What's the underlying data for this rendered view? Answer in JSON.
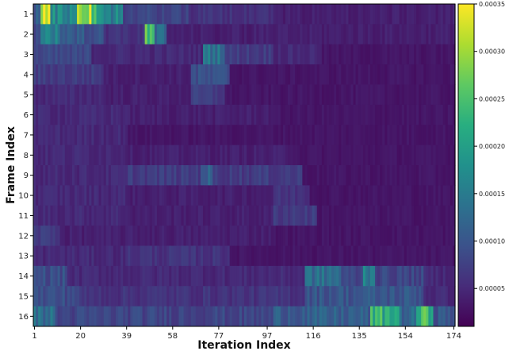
{
  "chart_data": {
    "type": "heatmap",
    "title": "",
    "xlabel": "Iteration Index",
    "ylabel": "Frame Index",
    "x_range": [
      1,
      174
    ],
    "x_ticks": [
      1,
      20,
      39,
      58,
      77,
      97,
      116,
      135,
      154,
      174
    ],
    "y_categories": [
      "1",
      "2",
      "3",
      "4",
      "5",
      "6",
      "7",
      "8",
      "9",
      "10",
      "11",
      "12",
      "13",
      "14",
      "15",
      "16"
    ],
    "colormap": "viridis",
    "colorbar": {
      "vmin": 1e-05,
      "vmax": 0.00035,
      "ticks": [
        5e-05,
        0.0001,
        0.00015,
        0.0002,
        0.00025,
        0.0003,
        0.00035
      ],
      "tick_labels": [
        "0.00005",
        "0.00010",
        "0.00015",
        "0.00020",
        "0.00025",
        "0.00030",
        "0.00035"
      ]
    },
    "grid": false,
    "row_profiles": [
      {
        "frame": "1",
        "segments": [
          {
            "from": 1,
            "to": 4,
            "value": 0.00011
          },
          {
            "from": 4,
            "to": 8,
            "value": 0.00033
          },
          {
            "from": 8,
            "to": 19,
            "value": 0.00017
          },
          {
            "from": 19,
            "to": 25,
            "value": 0.00031
          },
          {
            "from": 25,
            "to": 30,
            "value": 0.00022
          },
          {
            "from": 30,
            "to": 38,
            "value": 0.00016
          },
          {
            "from": 38,
            "to": 65,
            "value": 8e-05
          },
          {
            "from": 65,
            "to": 100,
            "value": 6e-05
          },
          {
            "from": 100,
            "to": 174,
            "value": 4e-05
          }
        ]
      },
      {
        "frame": "2",
        "segments": [
          {
            "from": 1,
            "to": 4,
            "value": 8e-05
          },
          {
            "from": 4,
            "to": 12,
            "value": 0.00016
          },
          {
            "from": 12,
            "to": 30,
            "value": 0.0001
          },
          {
            "from": 30,
            "to": 47,
            "value": 6e-05
          },
          {
            "from": 47,
            "to": 51,
            "value": 0.00024
          },
          {
            "from": 51,
            "to": 56,
            "value": 0.00012
          },
          {
            "from": 56,
            "to": 174,
            "value": 4e-05
          }
        ]
      },
      {
        "frame": "3",
        "segments": [
          {
            "from": 1,
            "to": 25,
            "value": 8e-05
          },
          {
            "from": 25,
            "to": 71,
            "value": 5e-05
          },
          {
            "from": 71,
            "to": 80,
            "value": 0.00014
          },
          {
            "from": 80,
            "to": 100,
            "value": 7e-05
          },
          {
            "from": 100,
            "to": 120,
            "value": 5e-05
          },
          {
            "from": 120,
            "to": 174,
            "value": 3e-05
          }
        ]
      },
      {
        "frame": "4",
        "segments": [
          {
            "from": 1,
            "to": 30,
            "value": 7e-05
          },
          {
            "from": 30,
            "to": 66,
            "value": 4e-05
          },
          {
            "from": 66,
            "to": 82,
            "value": 9e-05
          },
          {
            "from": 82,
            "to": 174,
            "value": 3e-05
          }
        ]
      },
      {
        "frame": "5",
        "segments": [
          {
            "from": 1,
            "to": 30,
            "value": 5e-05
          },
          {
            "from": 30,
            "to": 66,
            "value": 4e-05
          },
          {
            "from": 66,
            "to": 80,
            "value": 7e-05
          },
          {
            "from": 80,
            "to": 174,
            "value": 3e-05
          }
        ]
      },
      {
        "frame": "6",
        "segments": [
          {
            "from": 1,
            "to": 40,
            "value": 5e-05
          },
          {
            "from": 40,
            "to": 100,
            "value": 4e-05
          },
          {
            "from": 100,
            "to": 174,
            "value": 3e-05
          }
        ]
      },
      {
        "frame": "7",
        "segments": [
          {
            "from": 1,
            "to": 40,
            "value": 5e-05
          },
          {
            "from": 40,
            "to": 174,
            "value": 3e-05
          }
        ]
      },
      {
        "frame": "8",
        "segments": [
          {
            "from": 1,
            "to": 40,
            "value": 5e-05
          },
          {
            "from": 40,
            "to": 110,
            "value": 4e-05
          },
          {
            "from": 110,
            "to": 174,
            "value": 3e-05
          }
        ]
      },
      {
        "frame": "9",
        "segments": [
          {
            "from": 1,
            "to": 40,
            "value": 5e-05
          },
          {
            "from": 40,
            "to": 70,
            "value": 7e-05
          },
          {
            "from": 70,
            "to": 75,
            "value": 0.00011
          },
          {
            "from": 75,
            "to": 112,
            "value": 7e-05
          },
          {
            "from": 112,
            "to": 174,
            "value": 3e-05
          }
        ]
      },
      {
        "frame": "10",
        "segments": [
          {
            "from": 1,
            "to": 40,
            "value": 5e-05
          },
          {
            "from": 40,
            "to": 100,
            "value": 4e-05
          },
          {
            "from": 100,
            "to": 115,
            "value": 6e-05
          },
          {
            "from": 115,
            "to": 174,
            "value": 3e-05
          }
        ]
      },
      {
        "frame": "11",
        "segments": [
          {
            "from": 1,
            "to": 40,
            "value": 5e-05
          },
          {
            "from": 40,
            "to": 100,
            "value": 4e-05
          },
          {
            "from": 100,
            "to": 118,
            "value": 7e-05
          },
          {
            "from": 118,
            "to": 174,
            "value": 3e-05
          }
        ]
      },
      {
        "frame": "12",
        "segments": [
          {
            "from": 1,
            "to": 12,
            "value": 7e-05
          },
          {
            "from": 12,
            "to": 100,
            "value": 4e-05
          },
          {
            "from": 100,
            "to": 174,
            "value": 3e-05
          }
        ]
      },
      {
        "frame": "13",
        "segments": [
          {
            "from": 1,
            "to": 40,
            "value": 5e-05
          },
          {
            "from": 40,
            "to": 82,
            "value": 6e-05
          },
          {
            "from": 82,
            "to": 174,
            "value": 3e-05
          }
        ]
      },
      {
        "frame": "14",
        "segments": [
          {
            "from": 1,
            "to": 15,
            "value": 9e-05
          },
          {
            "from": 15,
            "to": 113,
            "value": 5e-05
          },
          {
            "from": 113,
            "to": 128,
            "value": 0.00013
          },
          {
            "from": 128,
            "to": 137,
            "value": 8e-05
          },
          {
            "from": 137,
            "to": 142,
            "value": 0.00016
          },
          {
            "from": 142,
            "to": 162,
            "value": 8e-05
          },
          {
            "from": 162,
            "to": 174,
            "value": 5e-05
          }
        ]
      },
      {
        "frame": "15",
        "segments": [
          {
            "from": 1,
            "to": 20,
            "value": 9e-05
          },
          {
            "from": 20,
            "to": 113,
            "value": 6e-05
          },
          {
            "from": 113,
            "to": 162,
            "value": 0.0001
          },
          {
            "from": 162,
            "to": 174,
            "value": 5e-05
          }
        ]
      },
      {
        "frame": "16",
        "segments": [
          {
            "from": 1,
            "to": 10,
            "value": 0.00013
          },
          {
            "from": 10,
            "to": 100,
            "value": 8e-05
          },
          {
            "from": 100,
            "to": 140,
            "value": 0.00011
          },
          {
            "from": 140,
            "to": 152,
            "value": 0.00022
          },
          {
            "from": 152,
            "to": 159,
            "value": 0.00012
          },
          {
            "from": 159,
            "to": 166,
            "value": 0.00023
          },
          {
            "from": 166,
            "to": 174,
            "value": 0.0001
          }
        ]
      }
    ]
  }
}
